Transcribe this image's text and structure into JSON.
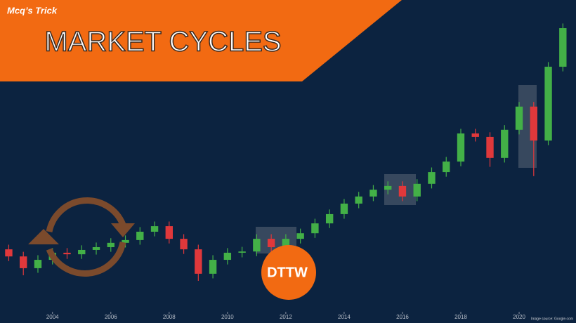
{
  "chart_data": {
    "type": "candlestick",
    "title": "MARKET CYCLES",
    "subtitle": "Mcq’s Trick",
    "logo": "DTTW",
    "source": "Image source: Google.com",
    "up_color": "#43b047",
    "down_color": "#e0383b",
    "x": [
      2002.5,
      2003.0,
      2003.5,
      2004.0,
      2004.5,
      2005.0,
      2005.5,
      2006.0,
      2006.5,
      2007.0,
      2007.5,
      2008.0,
      2008.5,
      2009.0,
      2009.5,
      2010.0,
      2010.5,
      2011.0,
      2011.5,
      2012.0,
      2012.5,
      2013.0,
      2013.5,
      2014.0,
      2014.5,
      2015.0,
      2015.5,
      2016.0,
      2016.5,
      2017.0,
      2017.5,
      2018.0,
      2018.5,
      2019.0,
      2019.5,
      2020.0,
      2020.5,
      2021.0,
      2021.5
    ],
    "open": [
      19.3,
      17.0,
      13.2,
      15.9,
      18.2,
      17.7,
      19.1,
      20.0,
      21.4,
      22.3,
      25.0,
      26.8,
      22.7,
      19.3,
      11.4,
      15.9,
      18.2,
      18.6,
      22.7,
      20.0,
      22.7,
      24.5,
      27.7,
      30.7,
      34.1,
      36.4,
      38.6,
      39.8,
      36.4,
      40.5,
      44.3,
      47.7,
      56.8,
      55.7,
      48.9,
      58.0,
      65.5,
      54.5,
      78.4
    ],
    "high": [
      20.8,
      18.5,
      17.4,
      19.7,
      19.7,
      20.6,
      21.5,
      22.9,
      23.8,
      26.5,
      28.3,
      28.3,
      24.2,
      20.8,
      17.4,
      19.7,
      20.1,
      24.2,
      24.2,
      24.2,
      26.0,
      29.2,
      32.2,
      35.6,
      37.9,
      40.1,
      41.3,
      41.3,
      42.0,
      45.8,
      49.2,
      58.3,
      58.3,
      57.2,
      59.5,
      67.0,
      67.0,
      79.9,
      92.4
    ],
    "low": [
      15.5,
      10.9,
      11.7,
      14.4,
      16.2,
      16.2,
      17.6,
      18.5,
      19.9,
      20.8,
      23.5,
      21.2,
      17.8,
      9.1,
      9.9,
      14.4,
      16.7,
      17.1,
      18.5,
      18.5,
      21.2,
      23.0,
      26.2,
      29.2,
      32.6,
      34.9,
      37.1,
      34.9,
      34.9,
      39.0,
      42.8,
      46.2,
      54.2,
      46.0,
      47.4,
      56.5,
      43.0,
      53.0,
      76.9
    ],
    "close": [
      17.0,
      13.2,
      15.9,
      18.2,
      17.7,
      19.1,
      20.0,
      21.4,
      22.3,
      25.0,
      26.8,
      22.7,
      19.3,
      11.4,
      15.9,
      18.2,
      18.6,
      22.7,
      20.0,
      22.7,
      24.5,
      27.7,
      30.7,
      34.1,
      36.4,
      38.6,
      39.8,
      36.4,
      40.5,
      44.3,
      47.7,
      56.8,
      55.7,
      48.9,
      58.0,
      65.5,
      54.5,
      78.4,
      90.9
    ],
    "xlim": [
      2002.2,
      2021.95
    ],
    "xticks": [
      2004,
      2006,
      2008,
      2010,
      2012,
      2014,
      2016,
      2018,
      2020
    ],
    "ylim": [
      0,
      100
    ]
  }
}
